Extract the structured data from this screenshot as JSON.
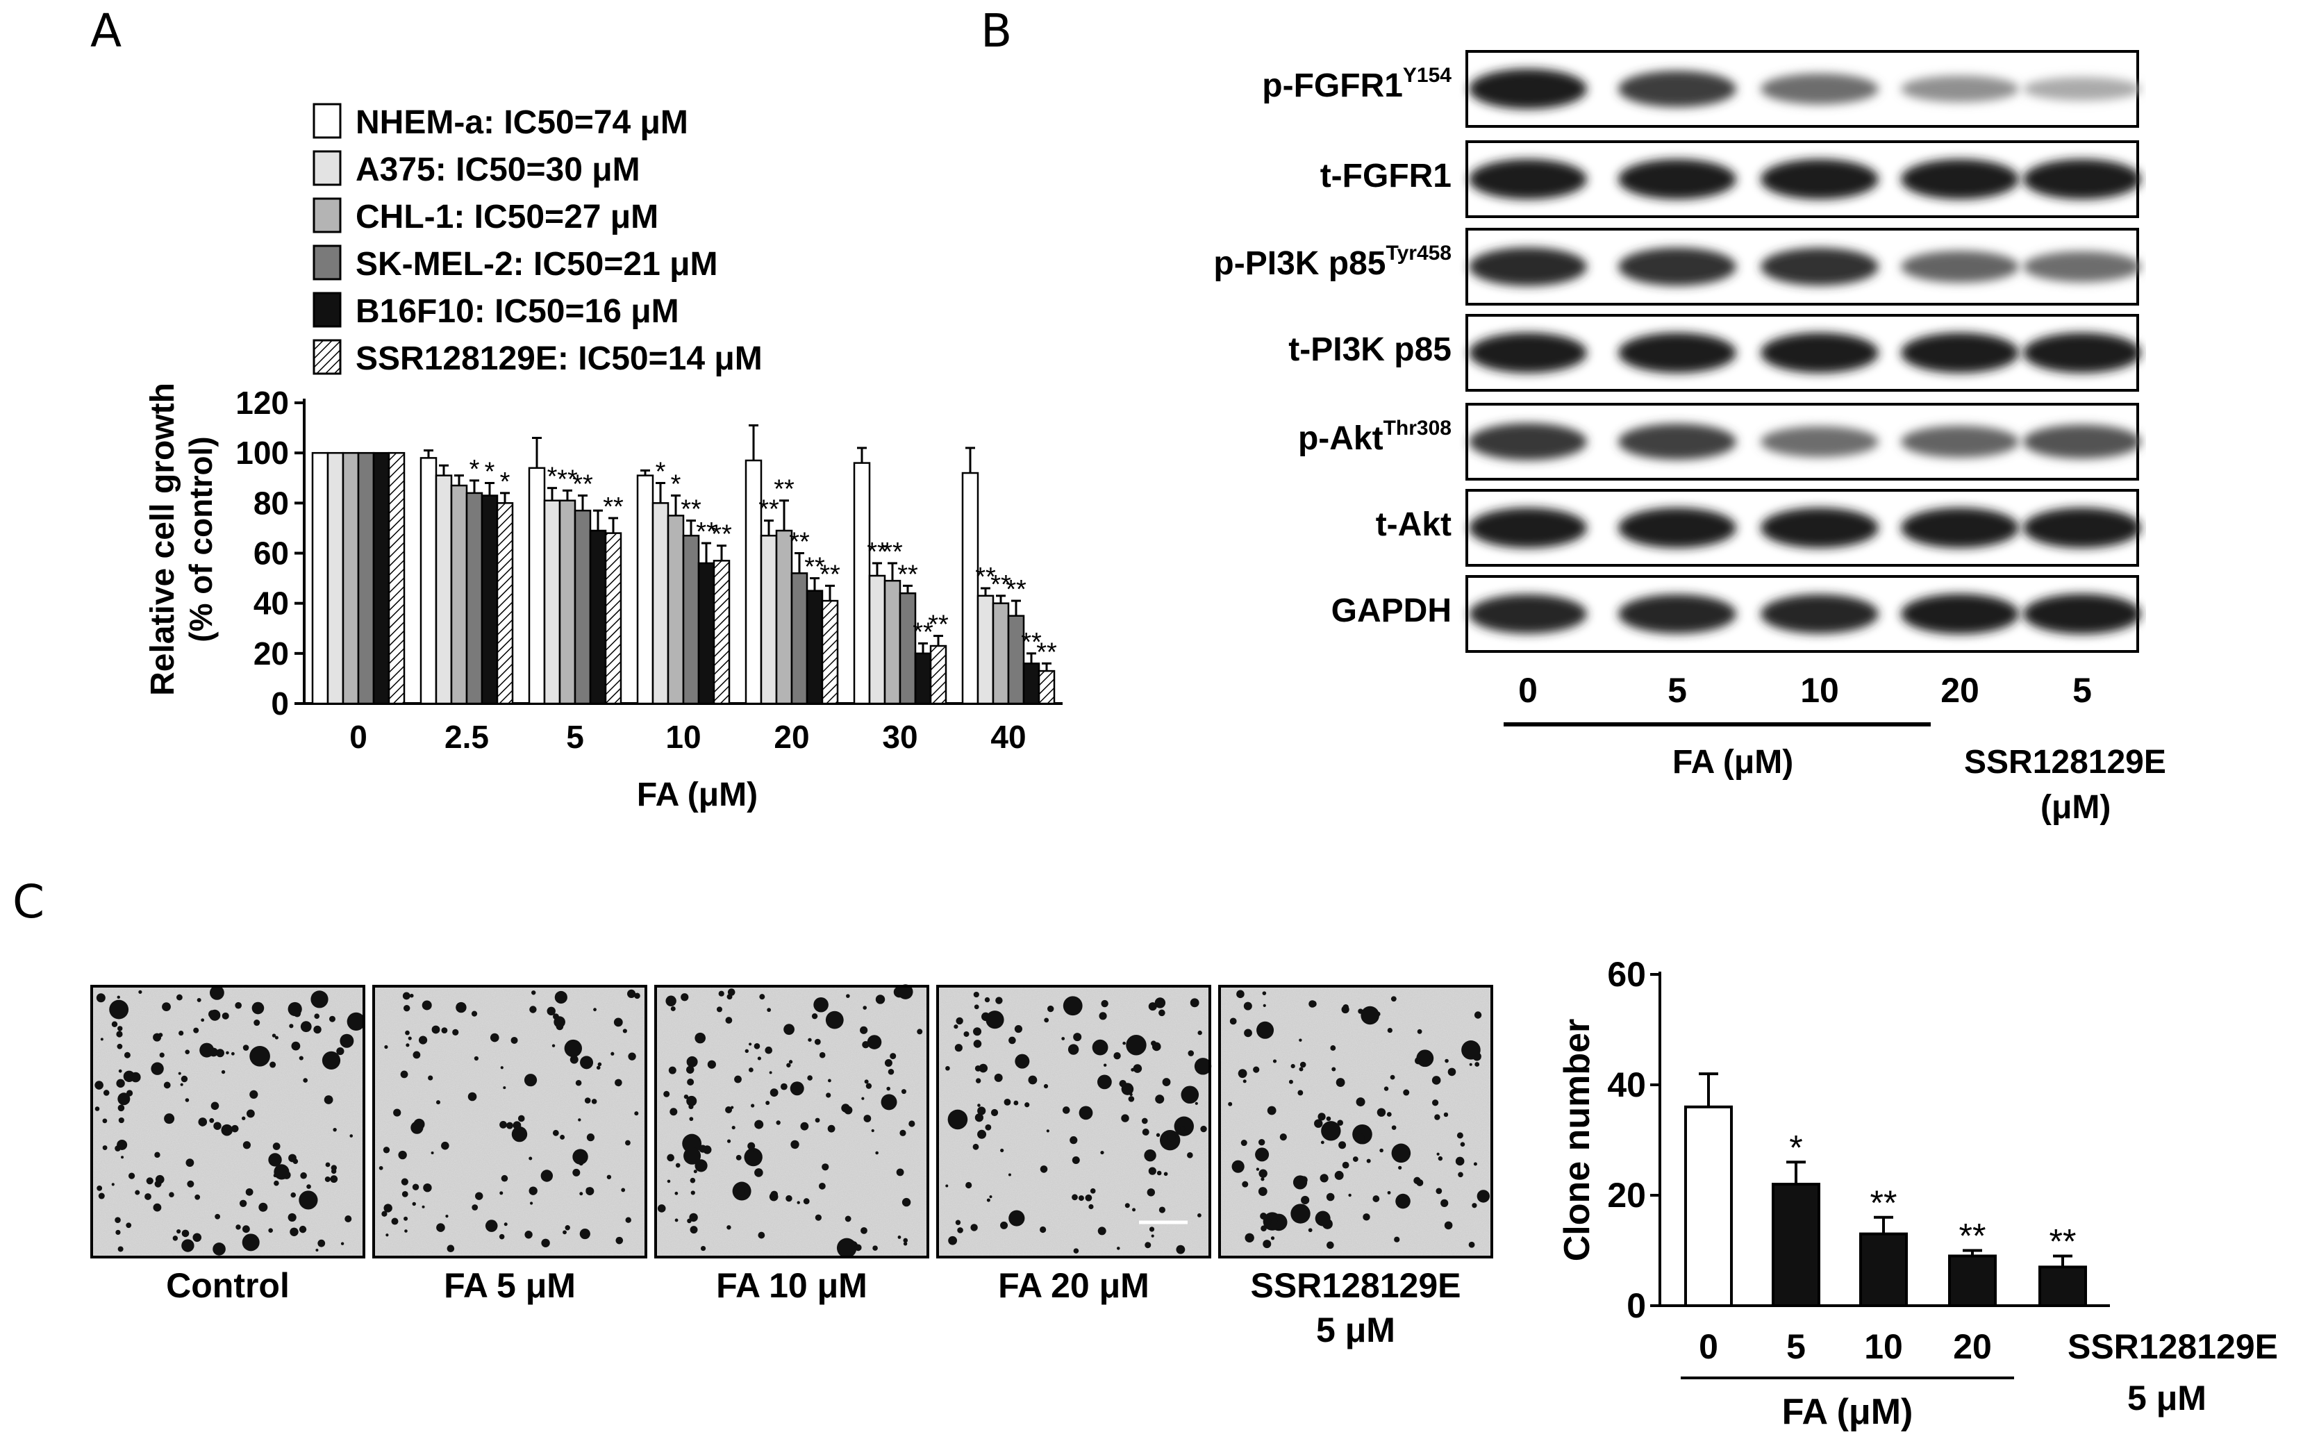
{
  "panels": {
    "a": "A",
    "b": "B",
    "c": "C"
  },
  "panel_a": {
    "chart_data": {
      "type": "bar",
      "title": "",
      "xlabel": "FA (μM)",
      "ylabel": "Relative cell growth",
      "ylabel2": "(% of control)",
      "ylim": [
        0,
        120
      ],
      "yticks": [
        0,
        20,
        40,
        60,
        80,
        100,
        120
      ],
      "categories": [
        "0",
        "2.5",
        "5",
        "10",
        "20",
        "30",
        "40"
      ],
      "series": [
        {
          "name": "NHEM-a: IC50=74 μM",
          "fill": "#ffffff",
          "values": [
            100,
            98,
            94,
            91,
            97,
            96,
            92
          ],
          "errors": [
            0,
            3,
            12,
            2,
            14,
            6,
            10
          ],
          "stars": [
            "",
            "",
            "",
            "",
            "",
            "",
            ""
          ]
        },
        {
          "name": "A375: IC50=30 μM",
          "fill": "#e3e3e3",
          "values": [
            100,
            91,
            81,
            80,
            67,
            51,
            43
          ],
          "errors": [
            0,
            4,
            5,
            8,
            6,
            5,
            3
          ],
          "stars": [
            "",
            "",
            "*",
            "*",
            "**",
            "**",
            "**"
          ]
        },
        {
          "name": "CHL-1: IC50=27 μM",
          "fill": "#b4b4b4",
          "values": [
            100,
            87,
            81,
            75,
            69,
            49,
            40
          ],
          "errors": [
            0,
            4,
            4,
            8,
            12,
            7,
            3
          ],
          "stars": [
            "",
            "",
            "**",
            "*",
            "**",
            "**",
            "**"
          ]
        },
        {
          "name": "SK-MEL-2: IC50=21 μM",
          "fill": "#7a7a7a",
          "values": [
            100,
            84,
            77,
            67,
            52,
            44,
            35
          ],
          "errors": [
            0,
            5,
            6,
            6,
            8,
            3,
            6
          ],
          "stars": [
            "",
            "*",
            "**",
            "**",
            "**",
            "**",
            "**"
          ]
        },
        {
          "name": "B16F10: IC50=16 μM",
          "fill": "#111111",
          "values": [
            100,
            83,
            69,
            56,
            45,
            20,
            16
          ],
          "errors": [
            0,
            5,
            8,
            8,
            5,
            4,
            4
          ],
          "stars": [
            "",
            "*",
            "",
            "**",
            "**",
            "**",
            "**"
          ]
        },
        {
          "name": "SSR128129E: IC50=14 μM",
          "fill": "hatch",
          "values": [
            100,
            80,
            68,
            57,
            41,
            23,
            13
          ],
          "errors": [
            0,
            4,
            6,
            6,
            6,
            4,
            3
          ],
          "stars": [
            "",
            "*",
            "**",
            "**",
            "**",
            "**",
            "**"
          ]
        }
      ]
    }
  },
  "panel_b": {
    "rows": [
      {
        "name": "p-FGFR1",
        "sup": "Y154"
      },
      {
        "name": "t-FGFR1",
        "sup": ""
      },
      {
        "name": "p-PI3K  p85",
        "sup": "Tyr458"
      },
      {
        "name": "t-PI3K  p85",
        "sup": ""
      },
      {
        "name": "p-Akt",
        "sup": "Thr308"
      },
      {
        "name": "t-Akt",
        "sup": ""
      },
      {
        "name": "GAPDH",
        "sup": ""
      }
    ],
    "band_intensity": [
      [
        1.0,
        0.82,
        0.55,
        0.35,
        0.2
      ],
      [
        1.0,
        1.0,
        1.0,
        1.0,
        1.0
      ],
      [
        0.92,
        0.9,
        0.88,
        0.6,
        0.55
      ],
      [
        1.0,
        1.0,
        1.0,
        1.0,
        1.0
      ],
      [
        0.85,
        0.8,
        0.55,
        0.6,
        0.7
      ],
      [
        1.0,
        1.0,
        1.0,
        1.0,
        1.0
      ],
      [
        0.95,
        0.95,
        0.95,
        1.0,
        1.0
      ]
    ],
    "lanes": [
      "0",
      "5",
      "10",
      "20",
      "5"
    ],
    "group1": "FA (μM)",
    "group2_line1": "SSR128129E",
    "group2_line2": "(μM)"
  },
  "panel_c": {
    "images": [
      {
        "caption1": "Control",
        "caption2": ""
      },
      {
        "caption1": "FA  5 μM",
        "caption2": ""
      },
      {
        "caption1": "FA  10 μM",
        "caption2": ""
      },
      {
        "caption1": "FA  20 μM",
        "caption2": ""
      },
      {
        "caption1": "SSR128129E",
        "caption2": "5 μM"
      }
    ],
    "chart_data": {
      "type": "bar",
      "title": "",
      "xlabel": "FA (μM)",
      "ylabel": "Clone number",
      "ylim": [
        0,
        60
      ],
      "yticks": [
        0,
        20,
        40,
        60
      ],
      "categories": [
        "0",
        "5",
        "10",
        "20",
        "SSR128129E"
      ],
      "category_sub": [
        "",
        "",
        "",
        "",
        "5 μM"
      ],
      "values": [
        36,
        22,
        13,
        9,
        7
      ],
      "errors": [
        6,
        4,
        3,
        1,
        2
      ],
      "fills": [
        "#ffffff",
        "#111111",
        "#111111",
        "#111111",
        "#111111"
      ],
      "stars": [
        "",
        "*",
        "**",
        "**",
        "**"
      ]
    }
  }
}
